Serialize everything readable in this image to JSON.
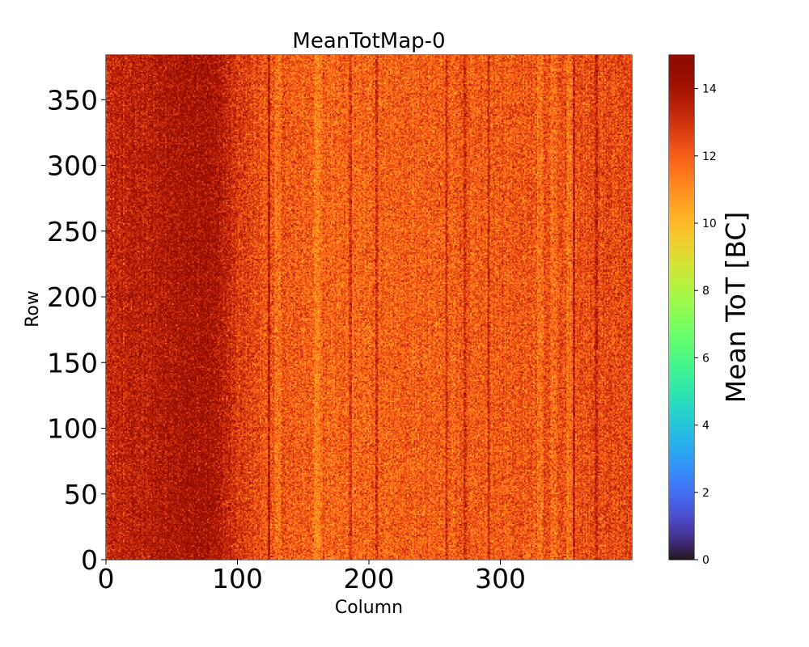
{
  "chart_data": {
    "type": "heatmap",
    "title": "MeanTotMap-0",
    "xlabel": "Column",
    "ylabel": "Row",
    "colorbar_label": "Mean ToT [BC]",
    "colormap": "turbo",
    "columns": 400,
    "rows": 384,
    "xlim": [
      0,
      400
    ],
    "ylim": [
      0,
      384
    ],
    "clim": [
      0,
      15
    ],
    "x_ticks": [
      0,
      100,
      200,
      300
    ],
    "y_ticks": [
      0,
      50,
      100,
      150,
      200,
      250,
      300,
      350
    ],
    "colorbar_ticks": [
      0,
      2,
      4,
      6,
      8,
      10,
      12,
      14
    ],
    "column_profile": {
      "columns": [
        0,
        20,
        40,
        60,
        75,
        90,
        100,
        120,
        150,
        200,
        250,
        300,
        350,
        399
      ],
      "mean_tot": [
        13.3,
        13.5,
        13.7,
        14.0,
        14.1,
        13.5,
        12.8,
        12.3,
        12.0,
        11.9,
        12.0,
        12.1,
        12.3,
        12.5
      ]
    },
    "noise_amplitude": 1.6,
    "darker_columns": [
      123,
      185,
      205,
      258,
      272,
      290,
      355,
      372
    ],
    "bright_bands": [
      130,
      160,
      330,
      340,
      352
    ]
  }
}
